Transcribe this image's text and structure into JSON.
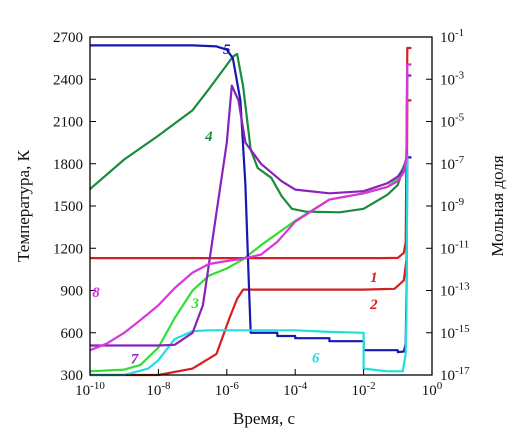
{
  "chart_data": {
    "type": "line",
    "title": "",
    "xlabel": "Время, с",
    "ylabel_left": "Температура, К",
    "ylabel_right": "Мольная доля",
    "x_scale": "log",
    "x_range": [
      1e-10,
      1
    ],
    "x_ticks": [
      {
        "value": 1e-10,
        "base": "10",
        "exp": "-10"
      },
      {
        "value": 1e-08,
        "base": "10",
        "exp": "-8"
      },
      {
        "value": 1e-06,
        "base": "10",
        "exp": "-6"
      },
      {
        "value": 0.0001,
        "base": "10",
        "exp": "-4"
      },
      {
        "value": 0.01,
        "base": "10",
        "exp": "-2"
      },
      {
        "value": 1,
        "base": "10",
        "exp": "0"
      }
    ],
    "y_left_range": [
      300,
      2700
    ],
    "y_left_ticks": [
      "300",
      "600",
      "900",
      "1200",
      "1500",
      "1800",
      "2100",
      "2400",
      "2700"
    ],
    "y_right_scale": "log",
    "y_right_range": [
      1e-17,
      0.1
    ],
    "y_right_ticks": [
      {
        "value": 1e-17,
        "base": "10",
        "exp": "-17"
      },
      {
        "value": 1e-15,
        "base": "10",
        "exp": "-15"
      },
      {
        "value": 1e-13,
        "base": "10",
        "exp": "-13"
      },
      {
        "value": 1e-11,
        "base": "10",
        "exp": "-11"
      },
      {
        "value": 1e-09,
        "base": "10",
        "exp": "-9"
      },
      {
        "value": 1e-07,
        "base": "10",
        "exp": "-7"
      },
      {
        "value": 1e-05,
        "base": "10",
        "exp": "-5"
      },
      {
        "value": 0.001,
        "base": "10",
        "exp": "-3"
      },
      {
        "value": 0.1,
        "base": "10",
        "exp": "-1"
      }
    ],
    "grid": false,
    "legend": "none",
    "series": [
      {
        "label": "1",
        "color": "#d42020",
        "axis": "right",
        "label_at": [
          0.02,
          2.5e-13
        ],
        "points": [
          [
            1e-10,
            3.4e-12
          ],
          [
            1e-06,
            3.4e-12
          ],
          [
            0.001,
            3.4e-12
          ],
          [
            0.03,
            3.4e-12
          ],
          [
            0.1,
            3.5e-12
          ],
          [
            0.15,
            6e-12
          ],
          [
            0.17,
            2e-11
          ],
          [
            0.19,
            0.03
          ],
          [
            0.25,
            0.03
          ]
        ]
      },
      {
        "label": "2",
        "color": "#d42020",
        "axis": "right",
        "label_at": [
          0.02,
          1.3e-14
        ],
        "points": [
          [
            1e-10,
            1e-17
          ],
          [
            1e-08,
            1e-17
          ],
          [
            1e-07,
            2e-17
          ],
          [
            5e-07,
            1e-16
          ],
          [
            1.2e-06,
            5e-15
          ],
          [
            2e-06,
            4e-14
          ],
          [
            3e-06,
            1.1e-13
          ],
          [
            0.0001,
            1.1e-13
          ],
          [
            0.01,
            1.1e-13
          ],
          [
            0.08,
            1.2e-13
          ],
          [
            0.15,
            3e-13
          ],
          [
            0.18,
            3e-12
          ],
          [
            0.19,
            0.0001
          ],
          [
            0.25,
            0.0001
          ]
        ]
      },
      {
        "label": "3",
        "color": "#33dd33",
        "axis": "right",
        "label_at": [
          1.2e-07,
          1.5e-14
        ],
        "points": [
          [
            1e-10,
            1.5e-17
          ],
          [
            1e-09,
            1.8e-17
          ],
          [
            3e-09,
            3e-17
          ],
          [
            1e-08,
            2e-16
          ],
          [
            3e-08,
            5e-15
          ],
          [
            1e-07,
            1e-13
          ],
          [
            3e-07,
            5e-13
          ],
          [
            1e-06,
            1.1e-12
          ],
          [
            3e-06,
            3e-12
          ],
          [
            1e-05,
            1.4e-11
          ],
          [
            0.0001,
            2e-10
          ],
          [
            0.001,
            2e-09
          ],
          [
            0.01,
            4e-09
          ],
          [
            0.05,
            8e-09
          ],
          [
            0.1,
            2e-08
          ],
          [
            0.15,
            8e-08
          ],
          [
            0.18,
            1.5e-07
          ],
          [
            0.19,
            0.003
          ]
        ]
      },
      {
        "label": "4",
        "color": "#1a8c3e",
        "axis": "left",
        "label_at": [
          3e-07,
          1960
        ],
        "points": [
          [
            1e-10,
            1620
          ],
          [
            1e-09,
            1830
          ],
          [
            1e-08,
            2000
          ],
          [
            1e-07,
            2180
          ],
          [
            3e-07,
            2330
          ],
          [
            8e-07,
            2470
          ],
          [
            1.5e-06,
            2560
          ],
          [
            2e-06,
            2580
          ],
          [
            3e-06,
            2350
          ],
          [
            5e-06,
            1900
          ],
          [
            8e-06,
            1770
          ],
          [
            2e-05,
            1700
          ],
          [
            4e-05,
            1570
          ],
          [
            8e-05,
            1480
          ],
          [
            0.0002,
            1460
          ],
          [
            0.002,
            1455
          ],
          [
            0.01,
            1480
          ],
          [
            0.05,
            1580
          ],
          [
            0.1,
            1650
          ],
          [
            0.15,
            1780
          ],
          [
            0.18,
            1830
          ],
          [
            0.19,
            1830
          ]
        ]
      },
      {
        "label": "5",
        "color": "#1818b0",
        "axis": "right",
        "label_at": [
          1e-06,
          0.016
        ],
        "points": [
          [
            1e-10,
            0.04
          ],
          [
            1e-08,
            0.04
          ],
          [
            1e-07,
            0.04
          ],
          [
            5e-07,
            0.036
          ],
          [
            1e-06,
            0.025
          ],
          [
            1.5e-06,
            0.01
          ],
          [
            2.5e-06,
            0.0001
          ],
          [
            3.5e-06,
            1e-08
          ],
          [
            4.5e-06,
            1e-13
          ],
          [
            5e-06,
            1e-15
          ],
          [
            3e-05,
            1e-15
          ],
          [
            3e-05,
            7e-16
          ],
          [
            0.0001,
            7e-16
          ],
          [
            0.0001,
            5.5e-16
          ],
          [
            0.001,
            5.5e-16
          ],
          [
            0.001,
            4e-16
          ],
          [
            0.01,
            4e-16
          ],
          [
            0.01,
            1.5e-16
          ],
          [
            0.1,
            1.5e-16
          ],
          [
            0.1,
            1.2e-16
          ],
          [
            0.15,
            1.3e-16
          ],
          [
            0.17,
            3e-16
          ],
          [
            0.18,
            1e-13
          ],
          [
            0.19,
            2e-07
          ],
          [
            0.25,
            2e-07
          ]
        ]
      },
      {
        "label": "6",
        "color": "#22dddd",
        "axis": "right",
        "label_at": [
          0.0004,
          4e-17
        ],
        "points": [
          [
            1e-10,
            1e-17
          ],
          [
            1e-09,
            1e-17
          ],
          [
            5e-09,
            2e-17
          ],
          [
            1e-08,
            5e-17
          ],
          [
            3e-08,
            5e-16
          ],
          [
            1e-07,
            1.2e-15
          ],
          [
            3e-07,
            1.3e-15
          ],
          [
            3e-06,
            1.3e-15
          ],
          [
            2e-05,
            1.3e-15
          ],
          [
            0.0001,
            1.3e-15
          ],
          [
            0.001,
            1.1e-15
          ],
          [
            0.01,
            1e-15
          ],
          [
            0.01,
            2e-17
          ],
          [
            0.05,
            1.5e-17
          ],
          [
            0.14,
            1.5e-17
          ],
          [
            0.17,
            1e-16
          ],
          [
            0.18,
            1e-14
          ],
          [
            0.19,
            3e-07
          ]
        ]
      },
      {
        "label": "7",
        "color": "#8822bb",
        "axis": "right",
        "label_at": [
          2e-09,
          3.5e-17
        ],
        "points": [
          [
            1e-10,
            2.5e-16
          ],
          [
            1e-08,
            2.5e-16
          ],
          [
            3e-08,
            2.7e-16
          ],
          [
            1e-07,
            1e-15
          ],
          [
            2e-07,
            2e-14
          ],
          [
            5e-07,
            5e-10
          ],
          [
            1e-06,
            1e-06
          ],
          [
            1.4e-06,
            0.0005
          ],
          [
            2.2e-06,
            0.0001
          ],
          [
            3.5e-06,
            1e-06
          ],
          [
            1e-05,
            1e-07
          ],
          [
            4e-05,
            1.5e-08
          ],
          [
            0.0001,
            6e-09
          ],
          [
            0.001,
            4e-09
          ],
          [
            0.01,
            5e-09
          ],
          [
            0.05,
            1.2e-08
          ],
          [
            0.1,
            2.5e-08
          ],
          [
            0.15,
            6e-08
          ],
          [
            0.18,
            2e-07
          ],
          [
            0.19,
            0.0015
          ],
          [
            0.25,
            0.0015
          ]
        ]
      },
      {
        "label": "8",
        "color": "#dd33dd",
        "axis": "right",
        "label_at": [
          1.5e-10,
          5e-14
        ],
        "points": [
          [
            1e-10,
            1.5e-16
          ],
          [
            3e-10,
            3e-16
          ],
          [
            1e-09,
            1e-15
          ],
          [
            3e-09,
            4e-15
          ],
          [
            1e-08,
            2e-14
          ],
          [
            3e-08,
            1.3e-13
          ],
          [
            1e-07,
            7e-13
          ],
          [
            3e-07,
            1.8e-12
          ],
          [
            1e-06,
            2.5e-12
          ],
          [
            3e-06,
            3.2e-12
          ],
          [
            1e-05,
            5e-12
          ],
          [
            3e-05,
            2e-11
          ],
          [
            0.0001,
            1.8e-10
          ],
          [
            0.001,
            2e-09
          ],
          [
            0.01,
            4e-09
          ],
          [
            0.05,
            8e-09
          ],
          [
            0.1,
            1.5e-08
          ],
          [
            0.15,
            4e-08
          ],
          [
            0.18,
            2e-07
          ],
          [
            0.19,
            0.005
          ],
          [
            0.25,
            0.005
          ]
        ]
      }
    ]
  }
}
